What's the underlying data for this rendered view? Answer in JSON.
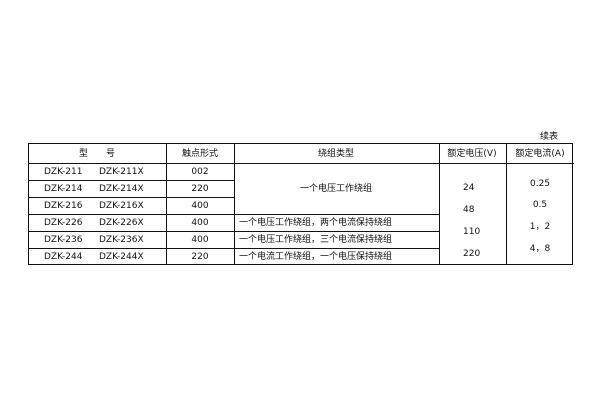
{
  "caption": "续表",
  "headers": [
    "型　　号",
    "触点形式",
    "绕组类型",
    "额定电压(V)",
    "额定电流(A)"
  ],
  "rows": [
    {
      "model": "DZK-211",
      "model_x": "DZK-211X",
      "contact": "002"
    },
    {
      "model": "DZK-214",
      "model_x": "DZK-214X",
      "contact": "220"
    },
    {
      "model": "DZK-216",
      "model_x": "DZK-216X",
      "contact": "400"
    },
    {
      "model": "DZK-226",
      "model_x": "DZK-226X",
      "contact": "400",
      "winding": "一个电压工作绕组，两个电流保持绕组"
    },
    {
      "model": "DZK-236",
      "model_x": "DZK-236X",
      "contact": "400",
      "winding": "一个电压工作绕组，三个电流保持绕组"
    },
    {
      "model": "DZK-244",
      "model_x": "DZK-244X",
      "contact": "220",
      "winding": "一个电流工作绕组，一个电压保持绕组"
    }
  ],
  "winding_merged": "一个电压工作绕组",
  "voltages": [
    "24",
    "48",
    "110",
    "220"
  ],
  "currents": [
    "0.25",
    "0.5",
    "1，2",
    "4，8"
  ]
}
